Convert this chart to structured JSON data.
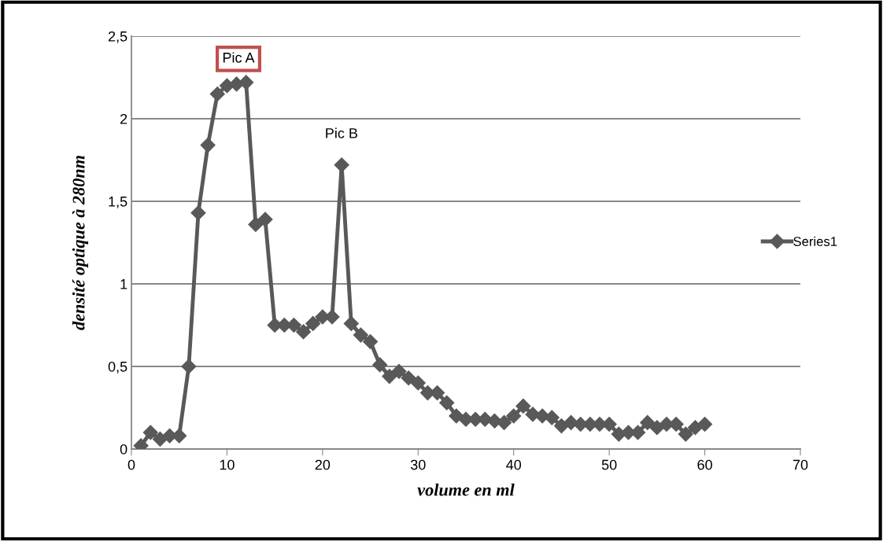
{
  "chart_data": {
    "type": "line",
    "xlabel": "volume en ml",
    "ylabel": "densité optique à 280nm",
    "x": [
      1,
      2,
      3,
      4,
      5,
      6,
      7,
      8,
      9,
      10,
      11,
      12,
      13,
      14,
      15,
      16,
      17,
      18,
      19,
      20,
      21,
      22,
      23,
      24,
      25,
      26,
      27,
      28,
      29,
      30,
      31,
      32,
      33,
      34,
      35,
      36,
      37,
      38,
      39,
      40,
      41,
      42,
      43,
      44,
      45,
      46,
      47,
      48,
      49,
      50,
      51,
      52,
      53,
      54,
      55,
      56,
      57,
      58,
      59,
      60
    ],
    "series": [
      {
        "name": "Series1",
        "color": "#595959",
        "values": [
          0.02,
          0.1,
          0.06,
          0.08,
          0.08,
          0.5,
          1.43,
          1.84,
          2.15,
          2.2,
          2.21,
          2.22,
          1.36,
          1.39,
          0.75,
          0.75,
          0.75,
          0.71,
          0.76,
          0.8,
          0.8,
          1.72,
          0.76,
          0.69,
          0.65,
          0.51,
          0.44,
          0.47,
          0.43,
          0.4,
          0.34,
          0.34,
          0.28,
          0.2,
          0.18,
          0.18,
          0.18,
          0.17,
          0.16,
          0.2,
          0.26,
          0.21,
          0.2,
          0.19,
          0.14,
          0.16,
          0.15,
          0.15,
          0.15,
          0.15,
          0.09,
          0.1,
          0.1,
          0.16,
          0.13,
          0.15,
          0.15,
          0.09,
          0.13,
          0.15
        ]
      }
    ],
    "annotations": [
      "Pic A",
      "Pic B"
    ],
    "xlim": [
      0,
      70
    ],
    "xticks": [
      0,
      10,
      20,
      30,
      40,
      50,
      60,
      70
    ],
    "ylim": [
      0,
      2.5
    ],
    "yticks": [
      0,
      {
        "value": 0.5,
        "label": "0,5"
      },
      1,
      {
        "value": 1.5,
        "label": "1,5"
      },
      2,
      {
        "value": 2.5,
        "label": "2,5"
      }
    ],
    "grid": "y",
    "legend": "right",
    "marker": "diamond",
    "line_style": "solid"
  }
}
